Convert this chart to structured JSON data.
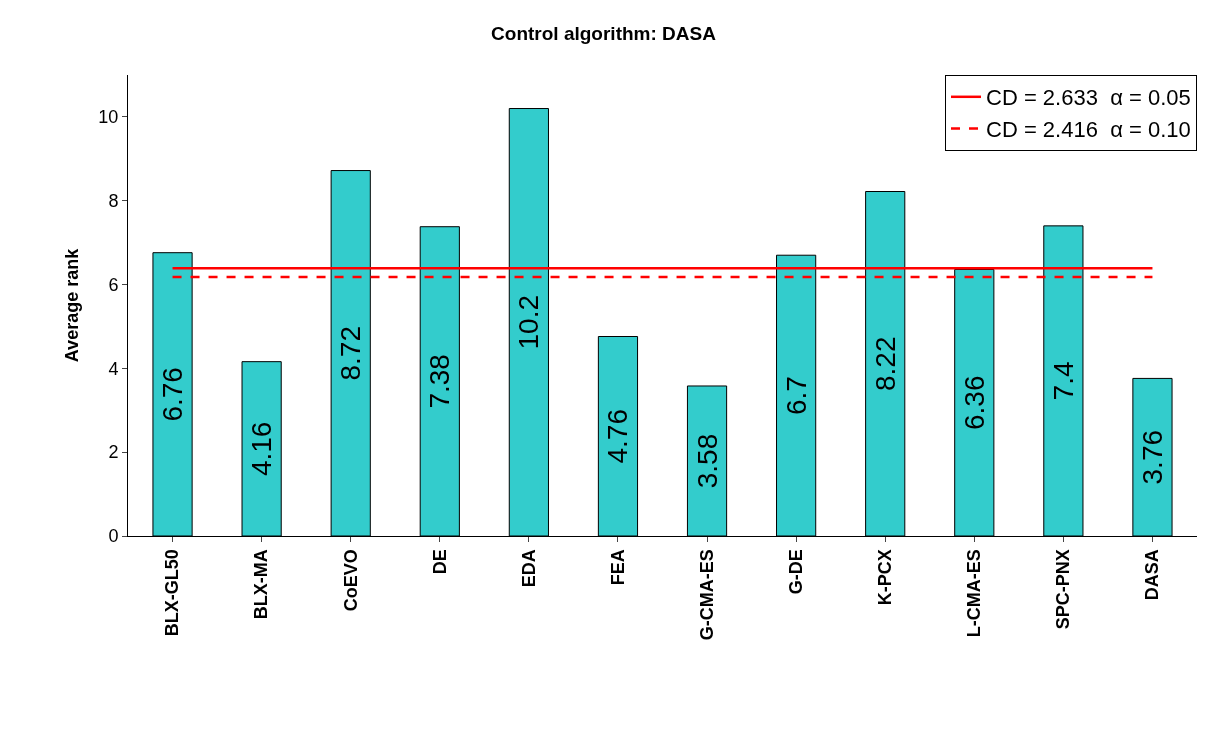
{
  "chart_data": {
    "type": "bar",
    "title": "Control algorithm: DASA",
    "ylabel": "Average rank",
    "categories": [
      "BLX-GL50",
      "BLX-MA",
      "CoEVO",
      "DE",
      "EDA",
      "FEA",
      "G-CMA-ES",
      "G-DE",
      "K-PCX",
      "L-CMA-ES",
      "SPC-PNX",
      "DASA"
    ],
    "series": [
      {
        "color": "#33cccc",
        "values": [
          6.76,
          4.16,
          8.72,
          7.38,
          10.2,
          4.76,
          3.58,
          6.7,
          8.22,
          6.36,
          7.4,
          3.76
        ],
        "value_labels": [
          "6.76",
          "4.16",
          "8.72",
          "7.38",
          "10.2",
          "4.76",
          "3.58",
          "6.7",
          "8.22",
          "6.36",
          "7.4",
          "3.76"
        ]
      },
      {
        "type": "line",
        "name": "CD = 2.633  α = 0.05",
        "color": "#ff0000",
        "line_style": "solid",
        "values": [
          6.39,
          6.39,
          6.39,
          6.39,
          6.39,
          6.39,
          6.39,
          6.39,
          6.39,
          6.39,
          6.39,
          6.39
        ]
      },
      {
        "type": "line",
        "name": "CD = 2.416  α = 0.10",
        "color": "#ff0000",
        "line_style": "dashed",
        "values": [
          6.18,
          6.18,
          6.18,
          6.18,
          6.18,
          6.18,
          6.18,
          6.18,
          6.18,
          6.18,
          6.18,
          6.18
        ]
      }
    ],
    "ylim": [
      0,
      11
    ],
    "yticks": [
      0,
      2,
      4,
      6,
      8,
      10
    ],
    "legend": "top right"
  }
}
